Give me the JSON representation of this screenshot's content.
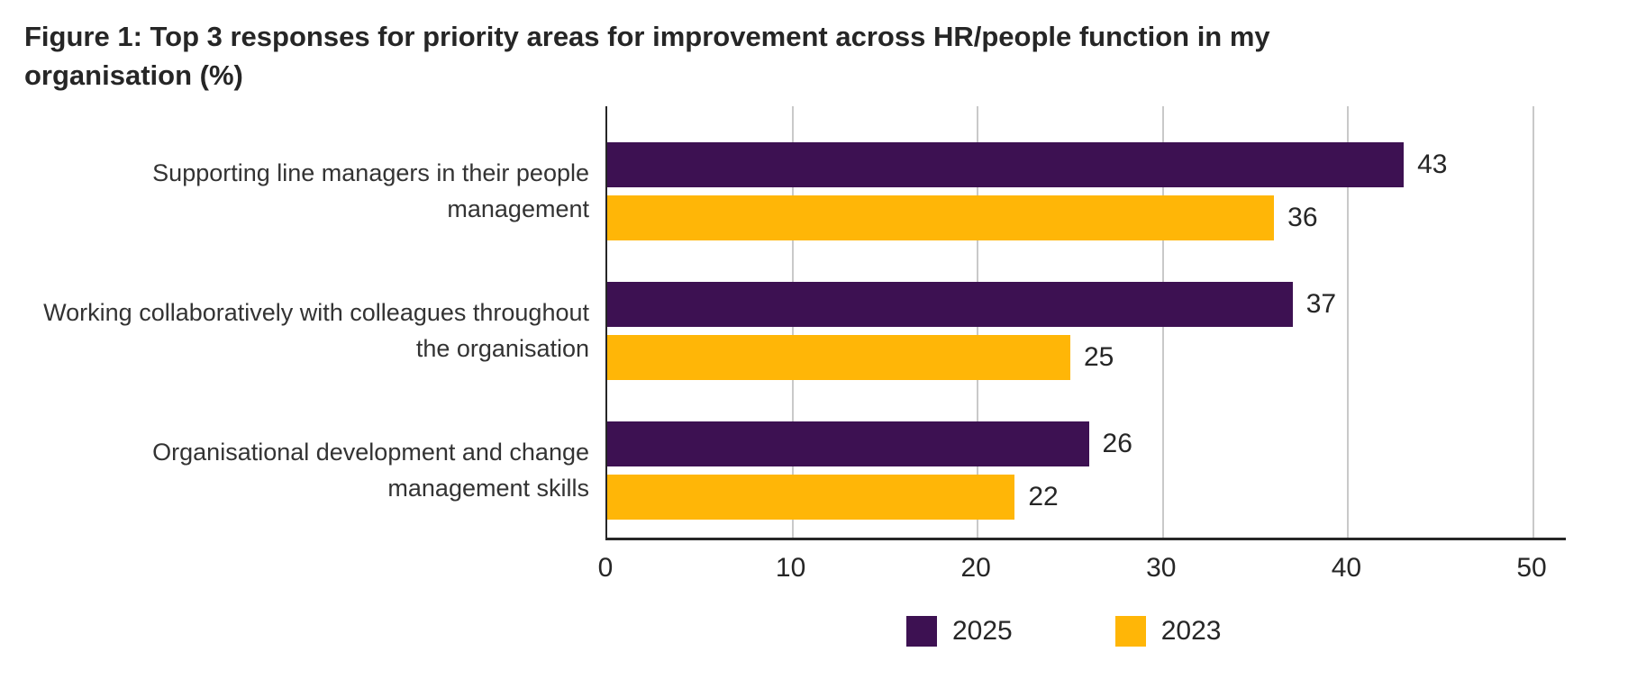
{
  "title": "Figure 1: Top 3 responses for priority areas for improvement across HR/people function in my organisation (%)",
  "chart_data": {
    "type": "bar",
    "orientation": "horizontal",
    "title": "Figure 1: Top 3 responses for priority areas for improvement across HR/people function in my organisation (%)",
    "categories": [
      "Supporting line managers in their people management",
      "Working collaboratively with colleagues throughout the organisation",
      "Organisational development and change management skills"
    ],
    "series": [
      {
        "name": "2025",
        "color": "#3D1152",
        "values": [
          43,
          37,
          26
        ]
      },
      {
        "name": "2023",
        "color": "#FFB607",
        "values": [
          36,
          25,
          22
        ]
      }
    ],
    "xlabel": "",
    "ylabel": "",
    "xlim": [
      0,
      50
    ],
    "xticks": [
      0,
      10,
      20,
      30,
      40,
      50
    ],
    "grid": "vertical-gridlines-on",
    "gridline_color": "#c9c9c9",
    "axis_color": "#262626",
    "value_labels_shown": true,
    "legend_position": "bottom",
    "legend": [
      {
        "label": "2025",
        "color": "#3D1152"
      },
      {
        "label": "2023",
        "color": "#FFB607"
      }
    ]
  }
}
